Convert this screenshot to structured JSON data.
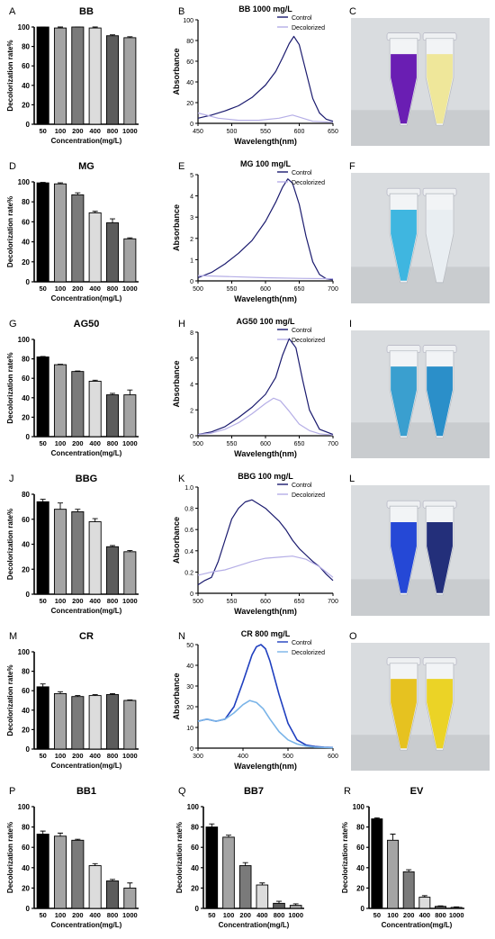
{
  "figure": {
    "panels": [
      {
        "type": "bar",
        "letter": "A",
        "title": "BB",
        "xlabel": "Concentration(mg/L)",
        "ylabel": "Decolorization rate%",
        "categories": [
          "50",
          "100",
          "200",
          "400",
          "800",
          "1000"
        ],
        "values": [
          101,
          99,
          100,
          99,
          91,
          89
        ],
        "errors": [
          1.5,
          1,
          1,
          1,
          1,
          1
        ],
        "ylim": [
          0,
          100
        ],
        "yticks": [
          "0",
          "20",
          "40",
          "60",
          "80",
          "100"
        ]
      },
      {
        "type": "line",
        "letter": "B",
        "title": "BB 1000 mg/L",
        "xlabel": "Wavelength(nm)",
        "ylabel": "Absorbance",
        "xlim": [
          450,
          650
        ],
        "ylim": [
          0,
          100
        ],
        "xticks": [
          "450",
          "500",
          "550",
          "600",
          "650"
        ],
        "yticks": [
          "0",
          "20",
          "40",
          "60",
          "80",
          "100"
        ],
        "series": [
          {
            "name": "Control",
            "x": [
              450,
              470,
              490,
              510,
              530,
              550,
              565,
              575,
              585,
              592,
              600,
              610,
              620,
              630,
              640,
              650
            ],
            "y": [
              5,
              8,
              12,
              17,
              25,
              37,
              50,
              63,
              77,
              84,
              76,
              50,
              24,
              10,
              4,
              2
            ]
          },
          {
            "name": "Decolorized",
            "x": [
              450,
              480,
              510,
              540,
              570,
              590,
              600,
              620,
              650
            ],
            "y": [
              10,
              5,
              3,
              3,
              5,
              8,
              6,
              2,
              1
            ]
          }
        ]
      },
      {
        "type": "photo",
        "letter": "C",
        "tubes": [
          "#6a1eb3",
          "#efe79a"
        ]
      },
      {
        "type": "bar",
        "letter": "D",
        "title": "MG",
        "xlabel": "Concentration(mg/L)",
        "ylabel": "Decolorization rate%",
        "categories": [
          "50",
          "100",
          "200",
          "400",
          "800",
          "1000"
        ],
        "values": [
          99,
          98,
          87,
          69,
          59,
          43
        ],
        "errors": [
          0.5,
          1,
          2,
          1.5,
          4,
          1
        ],
        "ylim": [
          0,
          100
        ],
        "yticks": [
          "0",
          "20",
          "40",
          "60",
          "80",
          "100"
        ]
      },
      {
        "type": "line",
        "letter": "E",
        "title": "MG 100 mg/L",
        "xlabel": "Wavelength(nm)",
        "ylabel": "Absorbance",
        "xlim": [
          500,
          700
        ],
        "ylim": [
          0,
          5
        ],
        "xticks": [
          "500",
          "550",
          "600",
          "650",
          "700"
        ],
        "yticks": [
          "0",
          "1",
          "2",
          "3",
          "4",
          "5"
        ],
        "series": [
          {
            "name": "Control",
            "x": [
              500,
              520,
              540,
              560,
              580,
              600,
              615,
              625,
              633,
              640,
              650,
              660,
              670,
              680,
              690,
              700
            ],
            "y": [
              0.15,
              0.4,
              0.8,
              1.3,
              1.9,
              2.8,
              3.7,
              4.4,
              4.8,
              4.6,
              3.6,
              2.1,
              0.9,
              0.3,
              0.1,
              0.05
            ]
          },
          {
            "name": "Decolorized",
            "x": [
              500,
              550,
              600,
              650,
              700
            ],
            "y": [
              0.25,
              0.2,
              0.15,
              0.12,
              0.1
            ]
          }
        ]
      },
      {
        "type": "photo",
        "letter": "F",
        "tubes": [
          "#3fb6e0",
          "#e9eef2"
        ]
      },
      {
        "type": "bar",
        "letter": "G",
        "title": "AG50",
        "xlabel": "Concentration(mg/L)",
        "ylabel": "Decolorization rate%",
        "categories": [
          "50",
          "100",
          "200",
          "400",
          "800",
          "1000"
        ],
        "values": [
          82,
          74,
          67,
          57,
          43,
          43
        ],
        "errors": [
          0.5,
          0.5,
          0.5,
          1,
          1.5,
          5
        ],
        "ylim": [
          0,
          100
        ],
        "yticks": [
          "0",
          "20",
          "40",
          "60",
          "80",
          "100"
        ]
      },
      {
        "type": "line",
        "letter": "H",
        "title": "AG50 100 mg/L",
        "xlabel": "Wavelength(nm)",
        "ylabel": "Absorbance",
        "xlim": [
          500,
          700
        ],
        "ylim": [
          0,
          8
        ],
        "xticks": [
          "500",
          "550",
          "600",
          "650",
          "700"
        ],
        "yticks": [
          "0",
          "2",
          "4",
          "6",
          "8"
        ],
        "series": [
          {
            "name": "Control",
            "x": [
              500,
              520,
              540,
              560,
              580,
              600,
              615,
              625,
              635,
              645,
              655,
              665,
              680,
              700
            ],
            "y": [
              0.1,
              0.3,
              0.7,
              1.4,
              2.2,
              3.2,
              4.5,
              6.2,
              7.5,
              6.8,
              4.3,
              2.0,
              0.5,
              0.1
            ]
          },
          {
            "name": "Decolorized",
            "x": [
              500,
              520,
              540,
              560,
              580,
              600,
              612,
              622,
              635,
              650,
              665,
              680,
              700
            ],
            "y": [
              0.1,
              0.2,
              0.5,
              1.0,
              1.7,
              2.5,
              2.9,
              2.7,
              1.9,
              0.9,
              0.4,
              0.15,
              0.05
            ]
          }
        ]
      },
      {
        "type": "photo",
        "letter": "I",
        "tubes": [
          "#3a9fcf",
          "#2b8fc9"
        ]
      },
      {
        "type": "bar",
        "letter": "J",
        "title": "BBG",
        "xlabel": "Concentration(mg/L)",
        "ylabel": "Decolorization rate%",
        "categories": [
          "50",
          "100",
          "200",
          "400",
          "800",
          "1000"
        ],
        "values": [
          74,
          68,
          66,
          58,
          38,
          34
        ],
        "errors": [
          2,
          5,
          2,
          2.5,
          1,
          1
        ],
        "ylim": [
          0,
          80
        ],
        "yticks": [
          "0",
          "20",
          "40",
          "60",
          "80"
        ]
      },
      {
        "type": "line",
        "letter": "K",
        "title": "BBG 100 mg/L",
        "xlabel": "Wavelength(nm)",
        "ylabel": "Absorbance",
        "xlim": [
          500,
          700
        ],
        "ylim": [
          0,
          1.0
        ],
        "xticks": [
          "500",
          "550",
          "600",
          "650",
          "700"
        ],
        "yticks": [
          "0",
          "0.2",
          "0.4",
          "0.6",
          "0.8",
          "1.0"
        ],
        "series": [
          {
            "name": "Control",
            "x": [
              500,
              510,
              520,
              530,
              540,
              550,
              560,
              570,
              580,
              590,
              600,
              610,
              620,
              630,
              640,
              650,
              660,
              670,
              680,
              690,
              700
            ],
            "y": [
              0.08,
              0.12,
              0.15,
              0.3,
              0.5,
              0.7,
              0.8,
              0.86,
              0.88,
              0.84,
              0.8,
              0.74,
              0.68,
              0.6,
              0.5,
              0.42,
              0.36,
              0.3,
              0.25,
              0.18,
              0.12
            ]
          },
          {
            "name": "Decolorized",
            "x": [
              500,
              520,
              540,
              560,
              580,
              600,
              620,
              640,
              660,
              680,
              700
            ],
            "y": [
              0.17,
              0.2,
              0.22,
              0.26,
              0.3,
              0.33,
              0.34,
              0.35,
              0.32,
              0.25,
              0.15
            ]
          }
        ]
      },
      {
        "type": "photo",
        "letter": "L",
        "tubes": [
          "#2548d6",
          "#232f7a"
        ]
      },
      {
        "type": "bar",
        "letter": "M",
        "title": "CR",
        "xlabel": "Concentration(mg/L)",
        "ylabel": "Decolorization rate%",
        "categories": [
          "50",
          "100",
          "200",
          "400",
          "800",
          "1000"
        ],
        "values": [
          64,
          57,
          54,
          55,
          56,
          50
        ],
        "errors": [
          3,
          2,
          1,
          1,
          1,
          0.5
        ],
        "ylim": [
          0,
          100
        ],
        "yticks": [
          "0",
          "20",
          "40",
          "60",
          "80",
          "100"
        ]
      },
      {
        "type": "line",
        "letter": "N",
        "title": "CR 800 mg/L",
        "xlabel": "Wavelength(nm)",
        "ylabel": "Absorbance",
        "xlim": [
          300,
          600
        ],
        "ylim": [
          0,
          50
        ],
        "xticks": [
          "300",
          "400",
          "500",
          "600"
        ],
        "yticks": [
          "0",
          "10",
          "20",
          "30",
          "40",
          "50"
        ],
        "series": [
          {
            "name": "Control",
            "x": [
              300,
              320,
              340,
              360,
              380,
              400,
              420,
              430,
              440,
              450,
              460,
              480,
              500,
              520,
              540,
              560,
              580,
              600
            ],
            "y": [
              13,
              14,
              13,
              14,
              20,
              32,
              45,
              49,
              50,
              48,
              42,
              26,
              12,
              4,
              1.5,
              0.8,
              0.5,
              0.3
            ]
          },
          {
            "name": "Decolorized",
            "x": [
              300,
              320,
              340,
              360,
              380,
              400,
              415,
              430,
              445,
              460,
              480,
              500,
              520,
              540,
              560,
              600
            ],
            "y": [
              13,
              14,
              13,
              14,
              17,
              21,
              23,
              22,
              19,
              14,
              8,
              4,
              2,
              1,
              0.5,
              0.2
            ]
          }
        ]
      },
      {
        "type": "photo",
        "letter": "O",
        "tubes": [
          "#e6c220",
          "#ebd326"
        ]
      },
      {
        "type": "bar",
        "letter": "P",
        "title": "BB1",
        "xlabel": "Concentration(mg/L)",
        "ylabel": "Decolorization rate%",
        "categories": [
          "50",
          "100",
          "200",
          "400",
          "800",
          "1000"
        ],
        "values": [
          73,
          71,
          67,
          42,
          27,
          20
        ],
        "errors": [
          3,
          3,
          1,
          2,
          1.5,
          5
        ],
        "ylim": [
          0,
          100
        ],
        "yticks": [
          "0",
          "20",
          "40",
          "60",
          "80",
          "100"
        ]
      },
      {
        "type": "bar",
        "letter": "Q",
        "title": "BB7",
        "xlabel": "Concentration(mg/L)",
        "ylabel": "Decolorization rate%",
        "categories": [
          "50",
          "100",
          "200",
          "400",
          "800",
          "1000"
        ],
        "values": [
          80,
          70,
          42,
          23,
          5,
          3
        ],
        "errors": [
          3,
          2,
          3,
          2,
          2,
          1.5
        ],
        "ylim": [
          0,
          100
        ],
        "yticks": [
          "0",
          "20",
          "40",
          "60",
          "80",
          "100"
        ]
      },
      {
        "type": "bar",
        "letter": "R",
        "title": "EV",
        "xlabel": "Concentration(mg/L)",
        "ylabel": "Decolorization rate%",
        "categories": [
          "50",
          "100",
          "200",
          "400",
          "800",
          "1000"
        ],
        "values": [
          88,
          67,
          36,
          11,
          2,
          1
        ],
        "errors": [
          1,
          6,
          2,
          1.5,
          0.5,
          0.5
        ],
        "ylim": [
          0,
          100
        ],
        "yticks": [
          "0",
          "20",
          "40",
          "60",
          "80",
          "100"
        ]
      }
    ]
  },
  "colors": {
    "bars": [
      "#000000",
      "#a4a4a4",
      "#7a7a7a",
      "#dcdcdc",
      "#5c5c5c",
      "#a4a4a4"
    ],
    "control": "#1a1a6e",
    "decolorized": "#b5aee6",
    "control_cr": "#1f3fbf",
    "decolorized_cr": "#7ab4e8"
  }
}
